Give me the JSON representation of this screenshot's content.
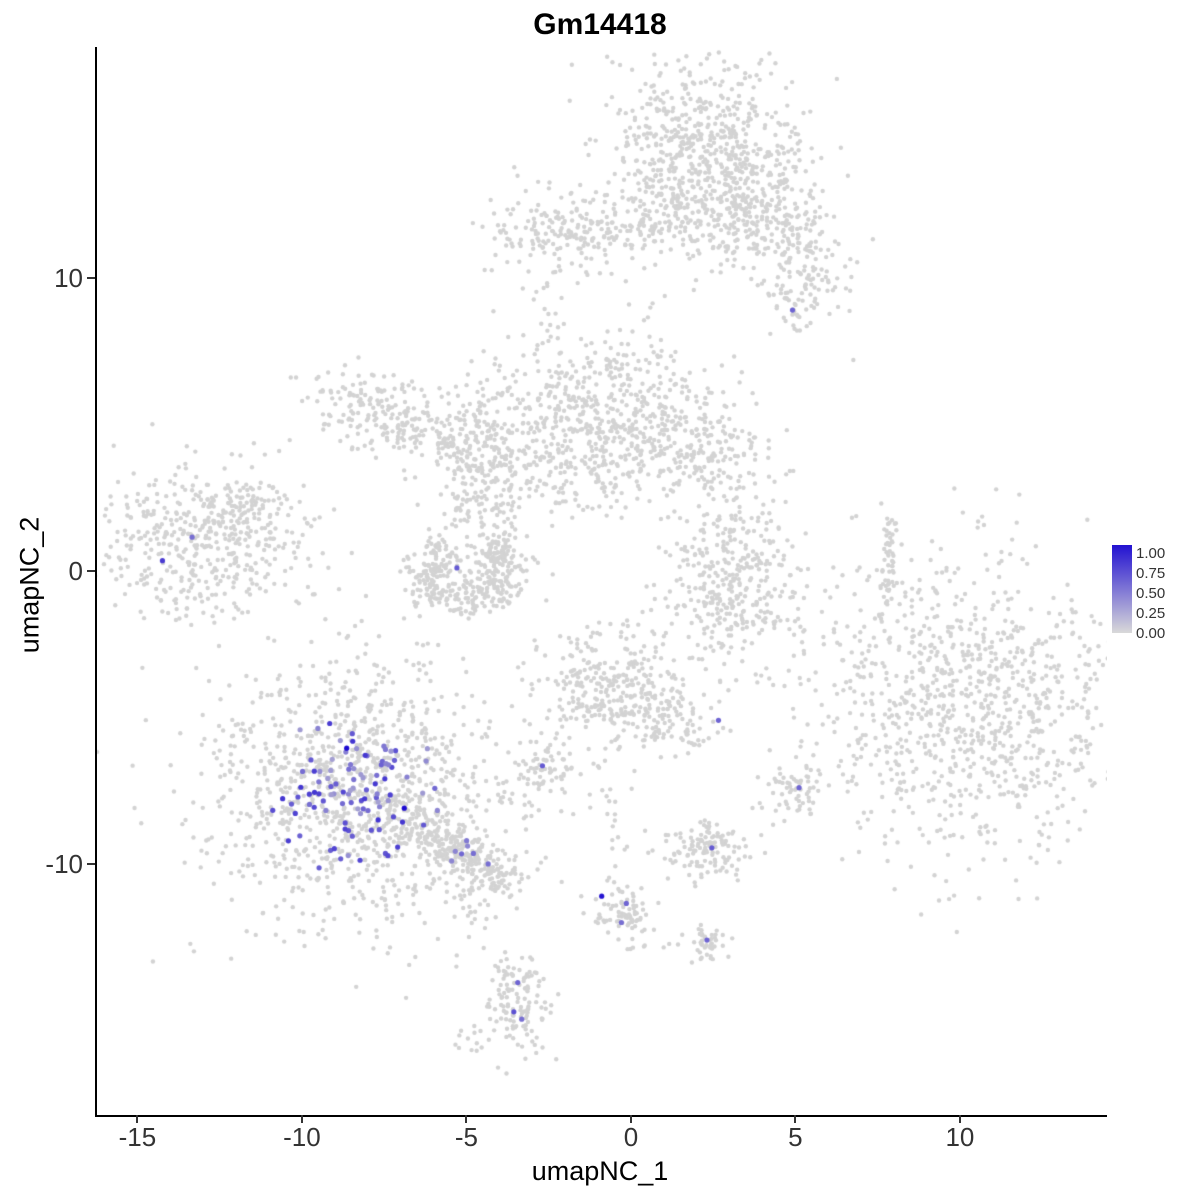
{
  "title": "Gm14418",
  "axes": {
    "x": {
      "label": "umapNC_1",
      "ticks": [
        -15,
        -10,
        -5,
        0,
        5,
        10
      ]
    },
    "y": {
      "label": "umapNC_2",
      "ticks": [
        -10,
        0,
        10
      ]
    }
  },
  "legend": {
    "labels": [
      "1.00",
      "0.75",
      "0.50",
      "0.25",
      "0.00"
    ],
    "top_color": "#2312d1",
    "bottom_color": "#d9d9d9"
  },
  "style": {
    "background": "#ffffff",
    "axis_color": "#000000",
    "base_point_color": "#d3d3d3",
    "low_color": "#d3d3d3",
    "high_color": "#1c0ad1",
    "point_radius": 2.2,
    "highlight_radius": 2.6
  },
  "chart_data": {
    "type": "scatter",
    "title": "Gm14418",
    "xlabel": "umapNC_1",
    "ylabel": "umapNC_2",
    "xlim": [
      -16.29,
      14.41
    ],
    "ylim": [
      -18.57,
      17.88
    ],
    "seed": 42,
    "clusters": [
      {
        "name": "top-main",
        "cx": 2.0,
        "cy": 14.3,
        "rx": 1.55,
        "ry": 1.5,
        "n": 650
      },
      {
        "name": "top-extension",
        "cx": 3.9,
        "cy": 12.1,
        "rx": 1.0,
        "ry": 0.9,
        "n": 220
      },
      {
        "name": "top-trail",
        "cx": 5.3,
        "cy": 10.4,
        "rx": 0.65,
        "ry": 0.8,
        "n": 90
      },
      {
        "name": "top-under",
        "cx": 1.2,
        "cy": 11.8,
        "rx": 0.9,
        "ry": 0.8,
        "n": 70
      },
      {
        "name": "top-right-tip",
        "cx": 5.0,
        "cy": 9.0,
        "rx": 0.45,
        "ry": 0.5,
        "n": 40
      },
      {
        "name": "topleft-small",
        "cx": -2.3,
        "cy": 11.5,
        "rx": 1.15,
        "ry": 0.8,
        "n": 170
      },
      {
        "name": "topleft-tail",
        "cx": -0.6,
        "cy": 11.4,
        "rx": 0.8,
        "ry": 0.4,
        "n": 40
      },
      {
        "name": "topleft-drip",
        "cx": -2.4,
        "cy": 8.6,
        "rx": 0.3,
        "ry": 1.0,
        "n": 18
      },
      {
        "name": "mid-main",
        "cx": -0.7,
        "cy": 5.1,
        "rx": 1.7,
        "ry": 1.4,
        "n": 650
      },
      {
        "name": "mid-right-ext",
        "cx": 2.2,
        "cy": 4.2,
        "rx": 1.0,
        "ry": 0.7,
        "n": 110
      },
      {
        "name": "mid-left-arm",
        "cx": -5.9,
        "cy": 4.6,
        "rx": 2.2,
        "ry": 0.75,
        "angle": -25,
        "n": 330
      },
      {
        "name": "mid-left-tip",
        "cx": -8.0,
        "cy": 5.6,
        "rx": 0.7,
        "ry": 0.6,
        "n": 60
      },
      {
        "name": "mid-connector",
        "cx": -4.4,
        "cy": 4.6,
        "rx": 0.5,
        "ry": 1.2,
        "n": 70
      },
      {
        "name": "neck-down-1",
        "cx": -5.1,
        "cy": 2.0,
        "rx": 0.35,
        "ry": 1.4,
        "n": 60
      },
      {
        "name": "neck-down-2",
        "cx": -4.1,
        "cy": 1.8,
        "rx": 0.35,
        "ry": 1.0,
        "n": 50
      },
      {
        "name": "c-cluster",
        "cx": -5.0,
        "cy": 0.0,
        "shape": "arc",
        "r": 1.25,
        "yscale": 0.8,
        "a1": 120,
        "a2": 420,
        "jitter": 0.4,
        "n": 380
      },
      {
        "name": "left-cluster",
        "cx": -13.0,
        "cy": 1.0,
        "rx": 1.6,
        "ry": 1.3,
        "n": 480
      },
      {
        "name": "left-tail",
        "cx": -11.6,
        "cy": 2.4,
        "rx": 0.5,
        "ry": 0.4,
        "n": 40
      },
      {
        "name": "midright-blob",
        "cx": 3.1,
        "cy": -0.2,
        "rx": 1.1,
        "ry": 1.5,
        "n": 380
      },
      {
        "name": "thin-vline",
        "cx": 7.8,
        "cy": 0.2,
        "rx": 0.12,
        "ry": 1.05,
        "n": 45
      },
      {
        "name": "right-big",
        "cx": 10.3,
        "cy": -4.6,
        "rx": 2.5,
        "ry": 2.6,
        "n": 1000
      },
      {
        "name": "center-mid",
        "cx": -0.5,
        "cy": -4.0,
        "rx": 1.3,
        "ry": 1.2,
        "n": 320
      },
      {
        "name": "center-arm",
        "cx": 0.8,
        "cy": -5.0,
        "rx": 0.9,
        "ry": 0.5,
        "angle": -30,
        "n": 90
      },
      {
        "name": "small-left",
        "cx": -2.6,
        "cy": -6.8,
        "rx": 0.5,
        "ry": 0.4,
        "n": 55
      },
      {
        "name": "small-right",
        "cx": 5.0,
        "cy": -7.5,
        "rx": 0.5,
        "ry": 0.5,
        "n": 60
      },
      {
        "name": "lowerleft-main",
        "cx": -8.4,
        "cy": -7.6,
        "rx": 2.3,
        "ry": 2.2,
        "n": 1150
      },
      {
        "name": "lowerleft-tail",
        "cx": -5.6,
        "cy": -9.4,
        "rx": 1.4,
        "ry": 0.35,
        "angle": -34,
        "n": 230
      },
      {
        "name": "tail-tip",
        "cx": -4.3,
        "cy": -10.2,
        "rx": 0.5,
        "ry": 0.4,
        "n": 60
      },
      {
        "name": "small-lowmid",
        "cx": 2.2,
        "cy": -9.5,
        "rx": 0.7,
        "ry": 0.5,
        "n": 130
      },
      {
        "name": "sparse-drip",
        "cx": -0.7,
        "cy": -8.6,
        "rx": 0.4,
        "ry": 1.6,
        "n": 25
      },
      {
        "name": "drip-cluster",
        "cx": -0.2,
        "cy": -11.6,
        "rx": 0.45,
        "ry": 0.6,
        "n": 80
      },
      {
        "name": "tiny-lowmid",
        "cx": 2.2,
        "cy": -12.6,
        "rx": 0.35,
        "ry": 0.35,
        "n": 45
      },
      {
        "name": "bottom-cluster",
        "cx": -3.5,
        "cy": -14.7,
        "rx": 0.45,
        "ry": 1.0,
        "n": 130
      },
      {
        "name": "bottom-tip",
        "cx": -5.0,
        "cy": -16.1,
        "rx": 0.3,
        "ry": 0.25,
        "n": 12
      },
      {
        "name": "sparse-midbot",
        "cx": -4.7,
        "cy": -11.3,
        "rx": 0.4,
        "ry": 0.7,
        "n": 20
      }
    ],
    "isolated_points": [
      [
        6.7,
        7.2
      ],
      [
        -10.4,
        6.6
      ],
      [
        -2.6,
        8.2
      ],
      [
        -2.9,
        7.7
      ]
    ],
    "highlight_clusters": [
      {
        "cx": -8.4,
        "cy": -7.5,
        "rx": 2.1,
        "ry": 2.0,
        "n": 100,
        "v_min": 0.25,
        "v_max": 0.8
      },
      {
        "cx": -5.3,
        "cy": -9.6,
        "rx": 0.8,
        "ry": 0.4,
        "n": 6,
        "v_min": 0.3,
        "v_max": 0.6
      }
    ],
    "highlight_points": [
      {
        "x": 4.85,
        "y": 8.9,
        "v": 0.55
      },
      {
        "x": -5.35,
        "y": 0.1,
        "v": 0.6
      },
      {
        "x": -14.3,
        "y": 0.35,
        "v": 0.75
      },
      {
        "x": -13.4,
        "y": 1.15,
        "v": 0.5
      },
      {
        "x": 2.6,
        "y": -5.1,
        "v": 0.55
      },
      {
        "x": -2.75,
        "y": -6.65,
        "v": 0.6
      },
      {
        "x": 5.05,
        "y": -7.4,
        "v": 0.55
      },
      {
        "x": 2.4,
        "y": -9.45,
        "v": 0.6
      },
      {
        "x": -0.95,
        "y": -11.1,
        "v": 0.95
      },
      {
        "x": -0.2,
        "y": -11.35,
        "v": 0.55
      },
      {
        "x": -0.35,
        "y": -12.0,
        "v": 0.5
      },
      {
        "x": 2.25,
        "y": -12.6,
        "v": 0.55
      },
      {
        "x": -3.5,
        "y": -14.05,
        "v": 0.55
      },
      {
        "x": -3.62,
        "y": -15.05,
        "v": 0.65
      },
      {
        "x": -3.38,
        "y": -15.3,
        "v": 0.5
      },
      {
        "x": -8.7,
        "y": -6.05,
        "v": 1.0
      },
      {
        "x": -6.95,
        "y": -8.1,
        "v": 1.0
      },
      {
        "x": -4.4,
        "y": -10.0,
        "v": 0.5
      }
    ]
  }
}
